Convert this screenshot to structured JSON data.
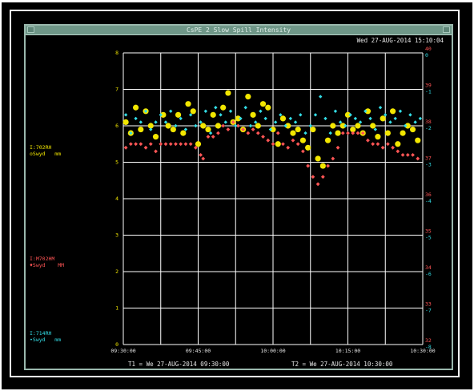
{
  "window": {
    "title": "CsPE 2 Slow Spill Intensity",
    "datetime": "Wed 27-AUG-2014 15:10:04"
  },
  "legend": {
    "series1": {
      "name": "I:702RH",
      "sub": "oSwyd   mm",
      "color": "#f2e600"
    },
    "series2": {
      "name": "I:M702HM",
      "sub": "♦Swyd    MM",
      "color": "#ff5555"
    },
    "series3": {
      "name": "I:714RH",
      "sub": "•Swyd   mm",
      "color": "#33dde6"
    }
  },
  "footer": {
    "t1": "T1 = We 27-AUG-2014 09:30:00",
    "t2": "T2 = We 27-AUG-2014 10:30:00"
  },
  "chart_data": {
    "type": "scatter",
    "x_ticks": [
      "09:30:00",
      "09:45:00",
      "10:00:00",
      "10:15:00",
      "10:30:00"
    ],
    "xlim": [
      "09:30:00",
      "10:30:00"
    ],
    "left_axis": {
      "ylim": [
        0,
        8
      ],
      "ticks": [
        "0",
        "1",
        "2",
        "3",
        "4",
        "5",
        "6",
        "7",
        "8"
      ],
      "color": "#f2e600"
    },
    "right_axis_red": {
      "ylim": [
        32,
        40
      ],
      "ticks": [
        "32",
        "33",
        "34",
        "35",
        "36",
        "37",
        "38",
        "39",
        "40"
      ],
      "color": "#ff5555"
    },
    "right_axis_cyan": {
      "ylim": [
        -8,
        0
      ],
      "ticks": [
        "-8",
        "-7",
        "-6",
        "-5",
        "-4",
        "-3",
        "-2",
        "-1",
        "0"
      ],
      "color": "#33dde6"
    },
    "grid": true,
    "series": [
      {
        "name": "I:702RH",
        "color": "#f2e600",
        "marker": "circle",
        "x": [
          "09:30:30",
          "09:31:30",
          "09:32:30",
          "09:33:30",
          "09:34:30",
          "09:35:30",
          "09:36:30",
          "09:38:00",
          "09:39:00",
          "09:40:00",
          "09:41:00",
          "09:42:00",
          "09:43:00",
          "09:44:00",
          "09:45:00",
          "09:46:00",
          "09:47:00",
          "09:48:00",
          "09:49:00",
          "09:50:00",
          "09:51:00",
          "09:52:00",
          "09:53:00",
          "09:54:00",
          "09:55:00",
          "09:56:00",
          "09:57:00",
          "09:58:00",
          "09:59:00",
          "10:00:00",
          "10:01:00",
          "10:02:00",
          "10:03:00",
          "10:04:00",
          "10:05:00",
          "10:06:00",
          "10:07:00",
          "10:08:00",
          "10:09:00",
          "10:10:00",
          "10:11:00",
          "10:12:00",
          "10:13:00",
          "10:14:00",
          "10:15:00",
          "10:16:00",
          "10:17:00",
          "10:18:00",
          "10:19:00",
          "10:20:00",
          "10:21:00",
          "10:22:00",
          "10:23:00",
          "10:24:00",
          "10:25:00",
          "10:26:00",
          "10:27:00",
          "10:28:00",
          "10:29:00"
        ],
        "y": [
          6.1,
          5.8,
          6.5,
          5.9,
          6.4,
          6.0,
          5.7,
          6.3,
          6.0,
          5.9,
          6.3,
          5.8,
          6.6,
          6.4,
          5.5,
          6.0,
          5.9,
          6.3,
          6.0,
          6.5,
          6.9,
          6.1,
          6.2,
          5.9,
          6.8,
          6.3,
          6.0,
          6.6,
          6.5,
          5.9,
          5.5,
          6.2,
          6.0,
          5.8,
          5.9,
          5.6,
          5.4,
          5.9,
          5.1,
          4.9,
          5.6,
          6.0,
          5.8,
          6.0,
          6.3,
          5.9,
          6.0,
          5.8,
          6.4,
          6.0,
          5.7,
          6.2,
          5.8,
          6.4,
          5.5,
          5.8,
          6.0,
          5.9,
          5.6
        ]
      },
      {
        "name": "I:M702HM",
        "color": "#ff5555",
        "marker": "diamond",
        "x": [
          "09:30:30",
          "09:31:30",
          "09:32:30",
          "09:33:30",
          "09:34:30",
          "09:35:30",
          "09:36:30",
          "09:37:30",
          "09:38:30",
          "09:39:30",
          "09:40:30",
          "09:41:30",
          "09:42:30",
          "09:43:30",
          "09:44:30",
          "09:45:30",
          "09:46:00",
          "09:47:00",
          "09:48:00",
          "09:49:00",
          "09:50:00",
          "09:51:00",
          "09:52:00",
          "09:53:00",
          "09:54:00",
          "09:55:00",
          "09:56:00",
          "09:57:00",
          "09:58:00",
          "09:59:00",
          "10:00:00",
          "10:01:00",
          "10:02:00",
          "10:03:00",
          "10:04:00",
          "10:05:00",
          "10:06:00",
          "10:07:00",
          "10:08:00",
          "10:09:00",
          "10:10:00",
          "10:11:00",
          "10:12:00",
          "10:13:00",
          "10:14:00",
          "10:15:00",
          "10:16:00",
          "10:17:00",
          "10:18:00",
          "10:19:00",
          "10:20:00",
          "10:21:00",
          "10:22:00",
          "10:23:00",
          "10:24:00",
          "10:25:00",
          "10:26:00",
          "10:27:00",
          "10:28:00",
          "10:29:00"
        ],
        "y": [
          37.4,
          37.5,
          37.5,
          37.5,
          37.4,
          37.5,
          37.3,
          37.5,
          37.5,
          37.5,
          37.5,
          37.5,
          37.5,
          37.5,
          37.4,
          37.2,
          37.1,
          37.7,
          37.7,
          37.8,
          38.0,
          37.9,
          38.1,
          38.0,
          37.9,
          37.8,
          37.9,
          37.8,
          37.7,
          37.6,
          37.5,
          37.8,
          37.5,
          37.4,
          37.6,
          37.5,
          37.3,
          36.9,
          36.6,
          36.4,
          36.6,
          36.9,
          37.1,
          37.4,
          37.8,
          37.8,
          37.8,
          37.8,
          37.8,
          37.6,
          37.5,
          37.5,
          37.4,
          37.5,
          37.4,
          37.3,
          37.2,
          37.2,
          37.2,
          37.1
        ]
      },
      {
        "name": "I:714RH",
        "color": "#33dde6",
        "marker": "dot",
        "x": [
          "09:30:30",
          "09:31:30",
          "09:32:30",
          "09:33:30",
          "09:34:30",
          "09:35:30",
          "09:36:30",
          "09:37:30",
          "09:38:30",
          "09:39:30",
          "09:40:30",
          "09:41:30",
          "09:42:30",
          "09:43:30",
          "09:44:30",
          "09:45:30",
          "09:46:30",
          "09:47:30",
          "09:48:30",
          "09:49:30",
          "09:50:30",
          "09:51:30",
          "09:52:30",
          "09:53:30",
          "09:54:30",
          "09:55:30",
          "09:56:30",
          "09:57:30",
          "09:58:30",
          "09:59:30",
          "10:00:30",
          "10:01:30",
          "10:02:30",
          "10:03:30",
          "10:04:30",
          "10:05:30",
          "10:06:30",
          "10:07:30",
          "10:08:30",
          "10:09:30",
          "10:10:30",
          "10:11:30",
          "10:12:30",
          "10:13:30",
          "10:14:30",
          "10:15:30",
          "10:16:30",
          "10:17:30",
          "10:18:30",
          "10:19:30",
          "10:20:30",
          "10:21:30",
          "10:22:30",
          "10:23:30",
          "10:24:30",
          "10:25:30",
          "10:26:30",
          "10:27:30",
          "10:28:30",
          "10:29:30"
        ],
        "y": [
          -1.7,
          -2.2,
          -1.8,
          -1.9,
          -1.6,
          -2.1,
          -1.9,
          -1.7,
          -1.9,
          -1.6,
          -2.0,
          -1.8,
          -2.1,
          -1.7,
          -2.0,
          -1.9,
          -1.6,
          -2.2,
          -1.5,
          -1.7,
          -1.9,
          -1.6,
          -2.0,
          -1.8,
          -1.5,
          -2.0,
          -1.9,
          -1.6,
          -1.8,
          -2.1,
          -1.9,
          -1.7,
          -2.0,
          -1.8,
          -1.9,
          -1.7,
          -2.2,
          -2.0,
          -1.7,
          -1.2,
          -1.8,
          -2.2,
          -1.6,
          -1.9,
          -2.0,
          -1.7,
          -1.8,
          -1.9,
          -1.6,
          -1.8,
          -2.1,
          -1.5,
          -1.7,
          -1.9,
          -1.8,
          -1.6,
          -2.0,
          -1.7,
          -1.9,
          -1.8
        ]
      }
    ]
  }
}
